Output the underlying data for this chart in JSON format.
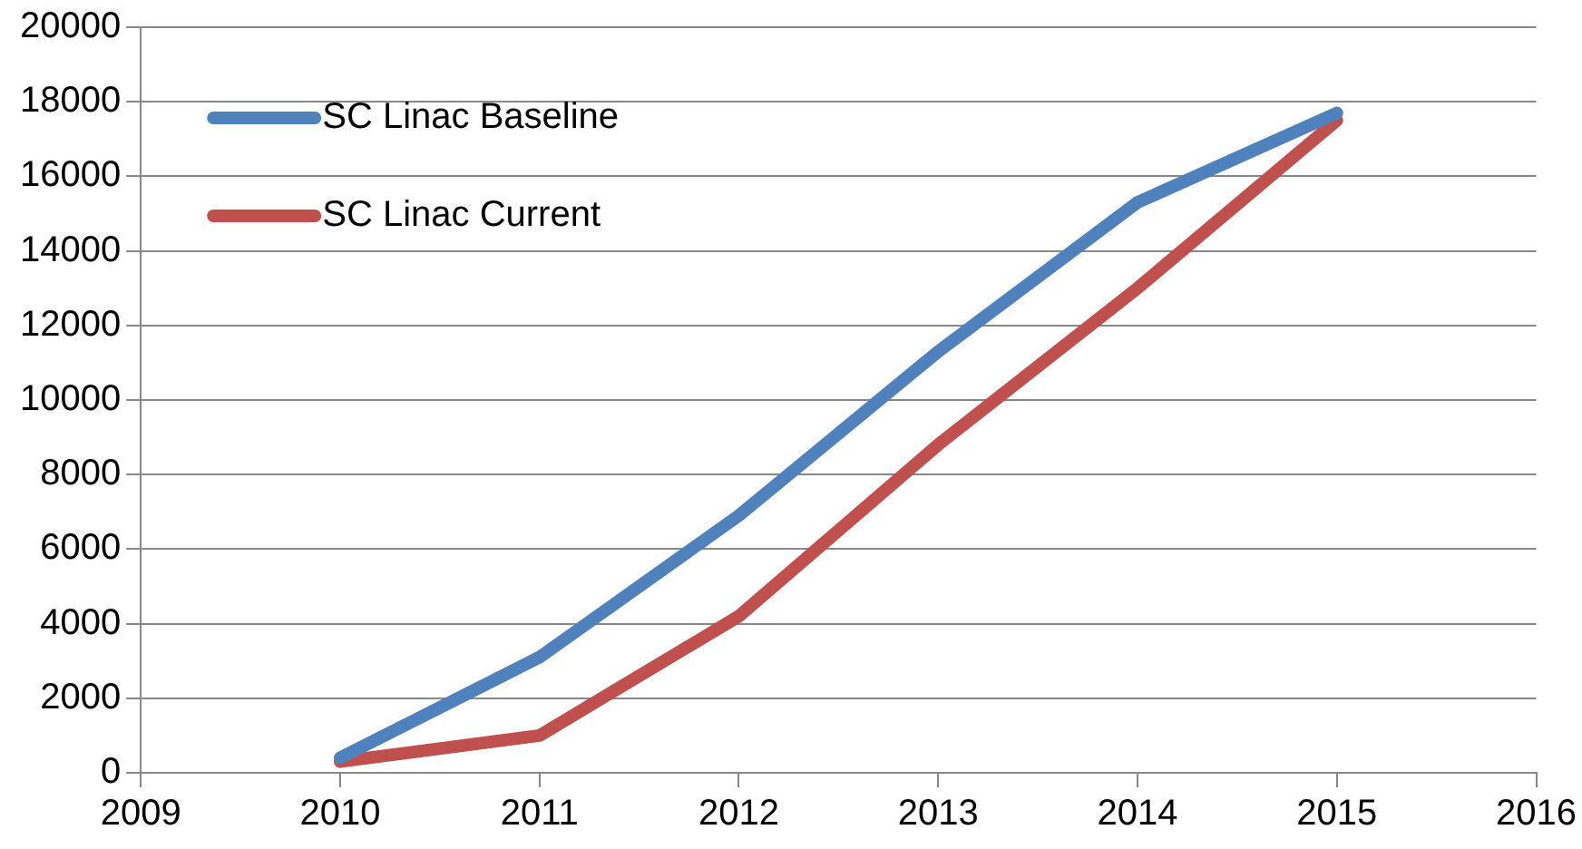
{
  "chart_data": {
    "type": "line",
    "x": [
      2010,
      2011,
      2012,
      2013,
      2014,
      2015
    ],
    "series": [
      {
        "name": "SC Linac Baseline",
        "color": "#4f81bd",
        "values": [
          400,
          3100,
          6900,
          11300,
          15300,
          17700
        ]
      },
      {
        "name": "SC Linac Current",
        "color": "#c0504d",
        "values": [
          300,
          1000,
          4200,
          8800,
          13000,
          17500
        ]
      }
    ],
    "xlim": [
      2009,
      2016
    ],
    "xticks": [
      2009,
      2010,
      2011,
      2012,
      2013,
      2014,
      2015,
      2016
    ],
    "ylim": [
      0,
      20000
    ],
    "yticks": [
      0,
      2000,
      4000,
      6000,
      8000,
      10000,
      12000,
      14000,
      16000,
      18000,
      20000
    ],
    "grid": "y",
    "legend": "top left",
    "marker": "none",
    "line_style": "solid"
  }
}
